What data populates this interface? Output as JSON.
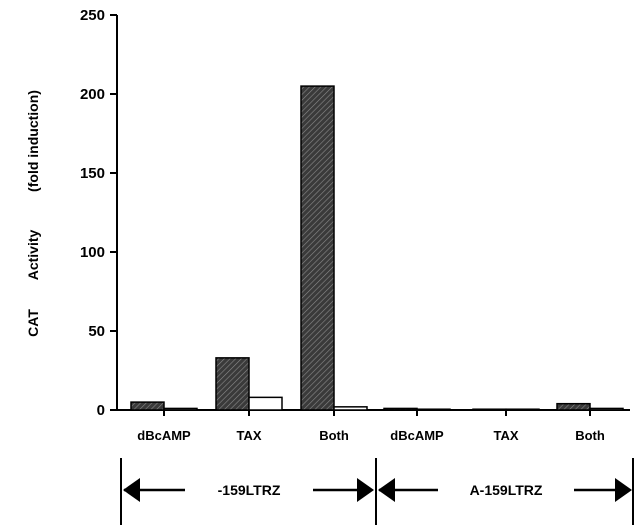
{
  "chart_data": {
    "type": "bar",
    "ylabel_part1": "CAT",
    "ylabel_part2": "Activity",
    "ylabel_part3": "(fold induction)",
    "ylim": [
      0,
      250
    ],
    "yticks": [
      0,
      50,
      100,
      150,
      200,
      250
    ],
    "categories": [
      "dBcAMP",
      "TAX",
      "Both",
      "dBcAMP",
      "TAX",
      "Both"
    ],
    "groups": [
      {
        "label": "-159LTRZ",
        "categories": [
          0,
          1,
          2
        ]
      },
      {
        "label": "A-159LTRZ",
        "categories": [
          3,
          4,
          5
        ]
      }
    ],
    "series": [
      {
        "values": [
          5,
          33,
          205,
          1,
          0.5,
          4
        ],
        "fill": "hatched-dark"
      },
      {
        "values": [
          1,
          8,
          2,
          0.5,
          0.5,
          1
        ],
        "fill": "white"
      }
    ],
    "grid": false,
    "legend": "none"
  }
}
